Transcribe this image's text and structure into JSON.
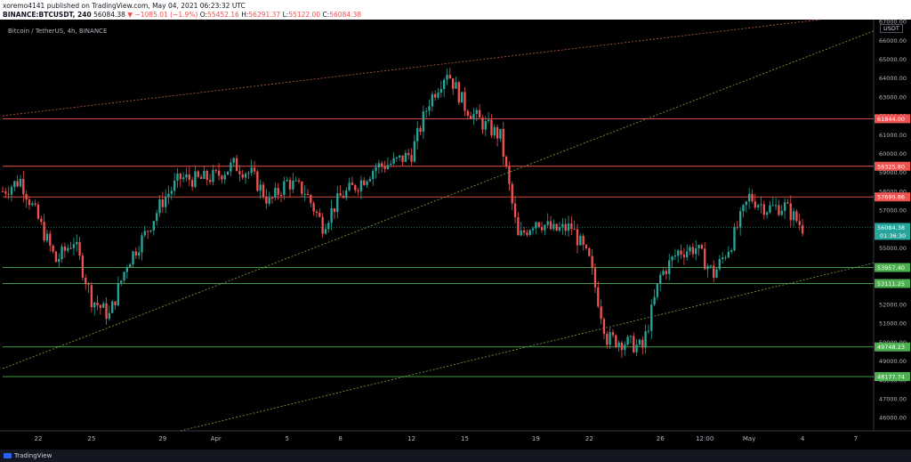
{
  "header": {
    "line1": "xoremo4141 published on TradingView.com, May 04, 2021 06:23:32 UTC",
    "symbol": "BINANCE:BTCUSDT, 240",
    "last": "56084.38",
    "change_arrow": "▼",
    "change": "−1085.01 (−1.9%)",
    "o_label": "O:",
    "o": "55452.16",
    "h_label": "H:",
    "h": "56291.37",
    "l_label": "L:",
    "l": "55122.00",
    "c_label": "C:",
    "c": "56084.38"
  },
  "chart_title": "Bitcoin / TetherUS, 4h, BINANCE",
  "currency_badge": "USDT",
  "footer": {
    "brand": "TradingView"
  },
  "colors": {
    "up": "#26a69a",
    "down": "#ef5350",
    "resistance": "#ef5350",
    "support": "#4caf50",
    "trend_green": "#6b9b3a",
    "trend_red": "#b0543a",
    "axis_text": "#b2b5be",
    "background": "#000000"
  },
  "chart_data": {
    "type": "candlestick",
    "title": "Bitcoin / TetherUS, 4h, BINANCE",
    "ylim": [
      45300,
      67100
    ],
    "y_ticks": [
      46000,
      47000,
      48000,
      49000,
      50000,
      51000,
      52000,
      53000,
      54000,
      55000,
      56000,
      57000,
      58000,
      59000,
      60000,
      61000,
      62000,
      63000,
      64000,
      65000,
      66000,
      67000
    ],
    "x_ticks": [
      "22",
      "25",
      "29",
      "Apr",
      "5",
      "8",
      "12",
      "15",
      "19",
      "22",
      "26",
      "12:00",
      "May",
      "4",
      "7"
    ],
    "x_tick_dates": [
      "2021-03-22",
      "2021-03-25",
      "2021-03-29",
      "2021-04-01",
      "2021-04-05",
      "2021-04-08",
      "2021-04-12",
      "2021-04-15",
      "2021-04-19",
      "2021-04-22",
      "2021-04-26",
      "2021-04-28 12:00",
      "2021-05-01",
      "2021-05-04",
      "2021-05-07"
    ],
    "levels": [
      {
        "price": 61844.0,
        "label": "61844.00",
        "kind": "resistance"
      },
      {
        "price": 59325.8,
        "label": "59325.80",
        "kind": "resistance"
      },
      {
        "price": 57699.86,
        "label": "57699.86",
        "kind": "resistance"
      },
      {
        "price": 53957.4,
        "label": "53957.40",
        "kind": "support"
      },
      {
        "price": 53111.25,
        "label": "53111.25",
        "kind": "support"
      },
      {
        "price": 49748.23,
        "label": "49748.23",
        "kind": "support"
      },
      {
        "price": 48177.74,
        "label": "48177.74",
        "kind": "support"
      }
    ],
    "current": {
      "price": 56084.38,
      "label": "56084.38",
      "countdown": "01:36:30"
    },
    "trendlines": [
      {
        "kind": "green",
        "from": [
          "2021-03-20",
          48600
        ],
        "to": [
          "2021-05-08",
          66500
        ]
      },
      {
        "kind": "green",
        "from": [
          "2021-03-30",
          45300
        ],
        "to": [
          "2021-05-08",
          54200
        ]
      },
      {
        "kind": "red",
        "from": [
          "2021-03-20",
          62000
        ],
        "to": [
          "2021-05-05",
          67100
        ]
      }
    ],
    "x_start": "2021-03-20",
    "x_end": "2021-05-08",
    "close_path": [
      [
        "2021-03-20",
        58000
      ],
      [
        "2021-03-21",
        58600
      ],
      [
        "2021-03-22",
        56500
      ],
      [
        "2021-03-23",
        54300
      ],
      [
        "2021-03-24",
        55400
      ],
      [
        "2021-03-25",
        52300
      ],
      [
        "2021-03-26",
        51400
      ],
      [
        "2021-03-27",
        54200
      ],
      [
        "2021-03-28",
        55700
      ],
      [
        "2021-03-29",
        57500
      ],
      [
        "2021-03-30",
        58700
      ],
      [
        "2021-03-31",
        58600
      ],
      [
        "2021-04-01",
        58800
      ],
      [
        "2021-04-02",
        59400
      ],
      [
        "2021-04-03",
        58900
      ],
      [
        "2021-04-04",
        57400
      ],
      [
        "2021-04-05",
        58500
      ],
      [
        "2021-04-06",
        58000
      ],
      [
        "2021-04-07",
        56200
      ],
      [
        "2021-04-08",
        57700
      ],
      [
        "2021-04-09",
        58400
      ],
      [
        "2021-04-10",
        59300
      ],
      [
        "2021-04-11",
        59500
      ],
      [
        "2021-04-12",
        60000
      ],
      [
        "2021-04-13",
        62800
      ],
      [
        "2021-04-14",
        64400
      ],
      [
        "2021-04-15",
        62500
      ],
      [
        "2021-04-16",
        61600
      ],
      [
        "2021-04-17",
        60900
      ],
      [
        "2021-04-18",
        55500
      ],
      [
        "2021-04-19",
        56500
      ],
      [
        "2021-04-20",
        55900
      ],
      [
        "2021-04-21",
        56100
      ],
      [
        "2021-04-22",
        54300
      ],
      [
        "2021-04-23",
        50200
      ],
      [
        "2021-04-24",
        50000
      ],
      [
        "2021-04-25",
        49700
      ],
      [
        "2021-04-26",
        53500
      ],
      [
        "2021-04-27",
        54800
      ],
      [
        "2021-04-28",
        55000
      ],
      [
        "2021-04-29",
        53600
      ],
      [
        "2021-04-30",
        55300
      ],
      [
        "2021-05-01",
        57700
      ],
      [
        "2021-05-02",
        57100
      ],
      [
        "2021-05-03",
        57200
      ],
      [
        "2021-05-04",
        56084
      ]
    ]
  }
}
